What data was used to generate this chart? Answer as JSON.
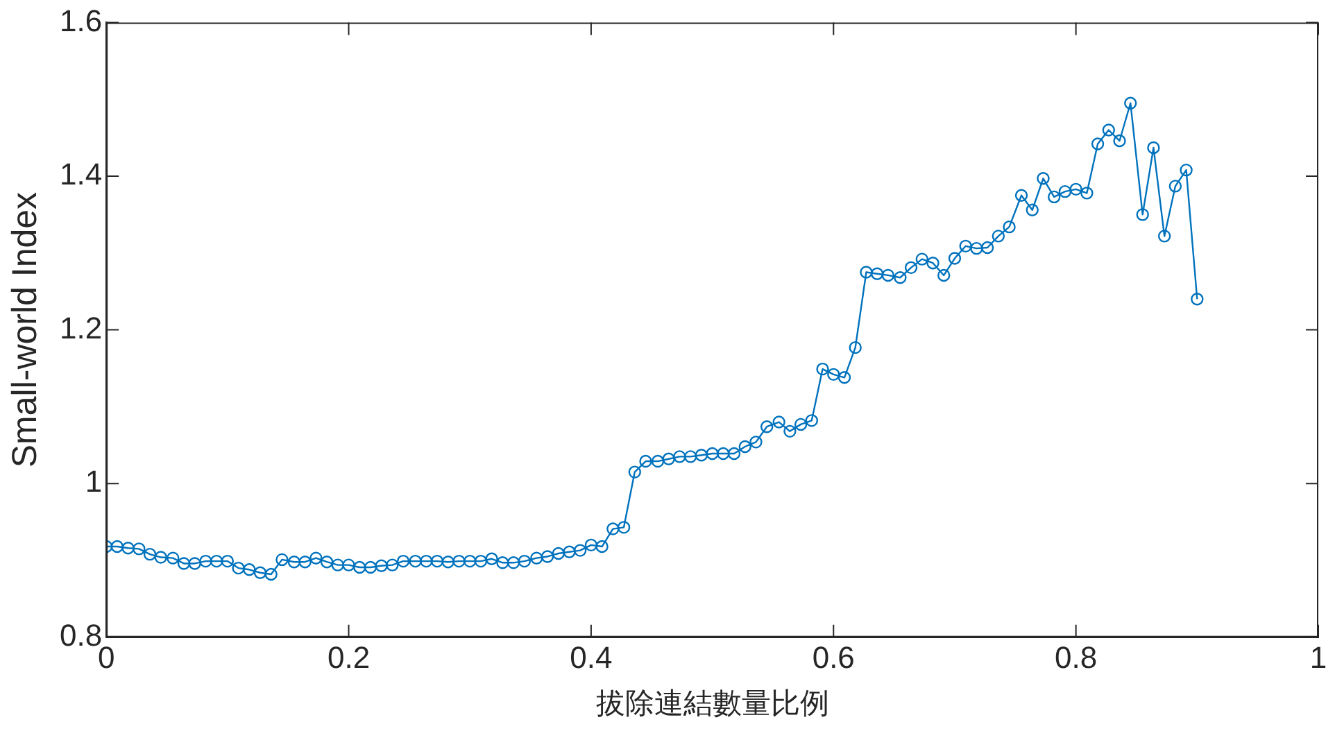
{
  "chart_data": {
    "type": "line",
    "xlabel": "拔除連結數量比例",
    "ylabel": "Small-world Index",
    "x": [
      0,
      0.009,
      0.018,
      0.027,
      0.036,
      0.045,
      0.055,
      0.064,
      0.073,
      0.082,
      0.091,
      0.1,
      0.109,
      0.118,
      0.127,
      0.136,
      0.145,
      0.155,
      0.164,
      0.173,
      0.182,
      0.191,
      0.2,
      0.209,
      0.218,
      0.227,
      0.236,
      0.245,
      0.255,
      0.264,
      0.273,
      0.282,
      0.291,
      0.3,
      0.309,
      0.318,
      0.327,
      0.336,
      0.345,
      0.355,
      0.364,
      0.373,
      0.382,
      0.391,
      0.4,
      0.409,
      0.418,
      0.427,
      0.436,
      0.445,
      0.455,
      0.464,
      0.473,
      0.482,
      0.491,
      0.5,
      0.509,
      0.518,
      0.527,
      0.536,
      0.545,
      0.555,
      0.564,
      0.573,
      0.582,
      0.591,
      0.6,
      0.609,
      0.618,
      0.627,
      0.636,
      0.645,
      0.655,
      0.664,
      0.673,
      0.682,
      0.691,
      0.7,
      0.709,
      0.718,
      0.727,
      0.736,
      0.745,
      0.755,
      0.764,
      0.773,
      0.782,
      0.791,
      0.8,
      0.809,
      0.818,
      0.827,
      0.836,
      0.845,
      0.855,
      0.864,
      0.873,
      0.882,
      0.891,
      0.9
    ],
    "series": [
      {
        "color": "#0072bd",
        "values": [
          0.918,
          0.918,
          0.916,
          0.915,
          0.908,
          0.904,
          0.903,
          0.896,
          0.896,
          0.899,
          0.899,
          0.899,
          0.89,
          0.888,
          0.884,
          0.882,
          0.901,
          0.898,
          0.898,
          0.903,
          0.898,
          0.894,
          0.894,
          0.891,
          0.891,
          0.893,
          0.894,
          0.899,
          0.899,
          0.899,
          0.899,
          0.898,
          0.899,
          0.899,
          0.899,
          0.902,
          0.897,
          0.897,
          0.899,
          0.903,
          0.905,
          0.909,
          0.911,
          0.913,
          0.92,
          0.918,
          0.941,
          0.943,
          1.015,
          1.029,
          1.029,
          1.032,
          1.035,
          1.035,
          1.037,
          1.039,
          1.039,
          1.039,
          1.048,
          1.054,
          1.074,
          1.08,
          1.068,
          1.077,
          1.082,
          1.149,
          1.142,
          1.138,
          1.177,
          1.275,
          1.273,
          1.271,
          1.268,
          1.281,
          1.292,
          1.287,
          1.271,
          1.293,
          1.309,
          1.306,
          1.307,
          1.322,
          1.334,
          1.375,
          1.356,
          1.397,
          1.373,
          1.38,
          1.383,
          1.378,
          1.442,
          1.46,
          1.446,
          1.495,
          1.35,
          1.437,
          1.322,
          1.387,
          1.408,
          1.24
        ]
      }
    ],
    "xlim": [
      0,
      1
    ],
    "xticks": [
      0,
      0.2,
      0.4,
      0.6,
      0.8,
      1
    ],
    "ylim": [
      0.8,
      1.6
    ],
    "yticks": [
      0.8,
      1,
      1.2,
      1.4,
      1.6
    ],
    "grid": false,
    "legend": false,
    "marker": "circle",
    "line_style": "solid"
  }
}
